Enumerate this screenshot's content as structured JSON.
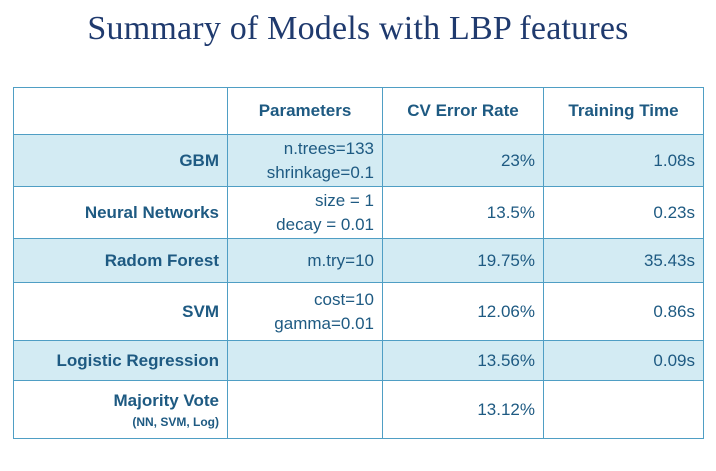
{
  "title": "Summary of Models with LBP features",
  "table": {
    "headers": [
      "",
      "Parameters",
      "CV Error Rate",
      "Training Time"
    ],
    "rows": [
      {
        "model": "GBM",
        "params": [
          "n.trees=133",
          "shrinkage=0.1"
        ],
        "cv_error": "23%",
        "time": "1.08s",
        "shaded": true
      },
      {
        "model": "Neural Networks",
        "params": [
          "size = 1",
          "decay = 0.01"
        ],
        "cv_error": "13.5%",
        "time": "0.23s",
        "shaded": false
      },
      {
        "model": "Radom Forest",
        "params": [
          "m.try=10"
        ],
        "cv_error": "19.75%",
        "time": "35.43s",
        "shaded": true
      },
      {
        "model": "SVM",
        "params": [
          "cost=10",
          "gamma=0.01"
        ],
        "cv_error": "12.06%",
        "time": "0.86s",
        "shaded": false
      },
      {
        "model": "Logistic Regression",
        "params": [],
        "cv_error": "13.56%",
        "time": "0.09s",
        "shaded": true
      },
      {
        "model": "Majority Vote",
        "model_sub": "(NN, SVM, Log)",
        "params": [],
        "cv_error": "13.12%",
        "time": "",
        "shaded": false
      }
    ]
  },
  "colors": {
    "title": "#1f3a6e",
    "text": "#1e5a82",
    "border": "#4f9ec4",
    "shade": "#d3ebf3"
  }
}
